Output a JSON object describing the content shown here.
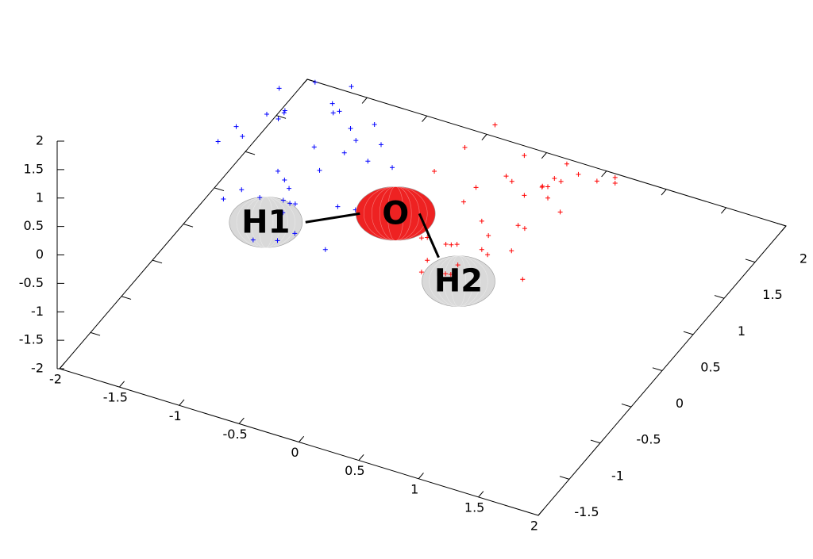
{
  "chart_data": {
    "type": "scatter3d",
    "xlim": [
      -2,
      2
    ],
    "ylim": [
      -2,
      2
    ],
    "zlim": [
      -2,
      2
    ],
    "xticks": [
      -2,
      -1.5,
      -1,
      -0.5,
      0,
      0.5,
      1,
      1.5,
      2
    ],
    "yticks": [
      -1.5,
      -1,
      -0.5,
      0,
      0.5,
      1,
      1.5,
      2
    ],
    "zticks": [
      -2,
      -1.5,
      -1,
      -0.5,
      0,
      0.5,
      1,
      1.5,
      2
    ],
    "series": [
      {
        "color": "#0000ff",
        "x": [
          -0.9,
          -0.5,
          -1.2,
          -0.3,
          -0.8,
          -1.0,
          -0.6,
          -0.2,
          -1.3,
          -0.7,
          -0.4,
          -1.1,
          -0.9,
          -0.5,
          -0.1,
          -0.8,
          -1.2,
          -0.6,
          -0.3,
          -1.0,
          -0.7,
          -0.4,
          -1.4,
          -0.9,
          -0.2,
          -0.6,
          -1.1,
          -0.8,
          -0.5,
          -0.3,
          -1.0,
          -0.7,
          -1.2,
          -0.4,
          -0.9,
          -0.6,
          -0.1,
          -1.3,
          -0.8,
          -0.5
        ],
        "y": [
          -0.6,
          -0.2,
          -0.9,
          -0.5,
          0.1,
          -0.3,
          -1.0,
          -0.7,
          -0.4,
          0.2,
          -0.8,
          -0.1,
          -0.5,
          -1.1,
          -0.3,
          -0.6,
          0.0,
          -0.9,
          -0.2,
          -0.7,
          -0.4,
          0.1,
          -0.6,
          -1.0,
          -0.5,
          -0.3,
          -0.8,
          0.2,
          -0.7,
          -0.1,
          -0.4,
          -0.9,
          -0.2,
          -0.6,
          0.0,
          -1.1,
          -0.4,
          -0.5,
          -0.8,
          -0.3
        ],
        "z": [
          0.4,
          0.9,
          0.1,
          1.2,
          0.6,
          -0.2,
          0.8,
          0.3,
          0.5,
          1.0,
          -0.4,
          0.7,
          1.3,
          0.2,
          0.6,
          -0.1,
          0.9,
          0.4,
          1.1,
          0.0,
          0.7,
          0.3,
          0.6,
          -0.3,
          0.9,
          1.4,
          0.2,
          0.5,
          0.8,
          -0.2,
          1.0,
          0.4,
          0.7,
          0.1,
          1.2,
          0.5,
          0.3,
          0.8,
          -0.5,
          0.6
        ]
      },
      {
        "color": "#ff0000",
        "x": [
          0.7,
          1.1,
          0.4,
          0.9,
          1.3,
          0.6,
          0.2,
          1.0,
          0.8,
          1.4,
          0.5,
          0.3,
          1.2,
          0.7,
          0.9,
          0.4,
          1.1,
          0.6,
          1.3,
          0.8,
          0.2,
          1.0,
          0.5,
          0.7,
          1.2,
          0.9,
          0.3,
          1.4,
          0.6,
          0.8,
          1.1,
          0.4,
          1.0,
          0.7,
          0.5,
          1.3,
          0.9,
          0.6,
          0.3,
          1.2
        ],
        "y": [
          -0.4,
          0.0,
          -0.7,
          -0.3,
          0.3,
          -0.1,
          -0.8,
          -0.5,
          -0.2,
          0.4,
          -0.6,
          0.1,
          -0.3,
          -0.9,
          -0.1,
          -0.4,
          0.2,
          -0.7,
          0.0,
          -0.5,
          -0.2,
          0.3,
          -0.4,
          -0.8,
          -0.3,
          -0.1,
          -0.6,
          0.4,
          -0.5,
          0.1,
          -0.2,
          -0.7,
          0.0,
          -0.4,
          0.2,
          -0.9,
          -0.2,
          -0.3,
          -0.6,
          -0.1
        ],
        "z": [
          0.3,
          0.8,
          -0.2,
          1.0,
          0.5,
          -0.4,
          0.6,
          0.1,
          0.9,
          0.4,
          -0.5,
          0.7,
          1.1,
          0.0,
          0.5,
          -0.3,
          0.8,
          0.2,
          1.0,
          -0.1,
          0.6,
          0.3,
          -0.6,
          0.4,
          0.9,
          1.2,
          0.0,
          0.5,
          0.7,
          -0.4,
          0.9,
          0.2,
          0.6,
          -0.2,
          1.1,
          0.3,
          0.1,
          0.7,
          -0.6,
          0.4
        ]
      }
    ],
    "atoms": [
      {
        "label": "H1",
        "color": "#d9d9d9",
        "x": -0.82,
        "y": -0.95,
        "z": 0
      },
      {
        "label": "O",
        "color": "#ee2222",
        "x": -0.01,
        "y": -0.42,
        "z": 0
      },
      {
        "label": "H2",
        "color": "#d9d9d9",
        "x": 0.79,
        "y": -0.95,
        "z": 0
      }
    ]
  }
}
